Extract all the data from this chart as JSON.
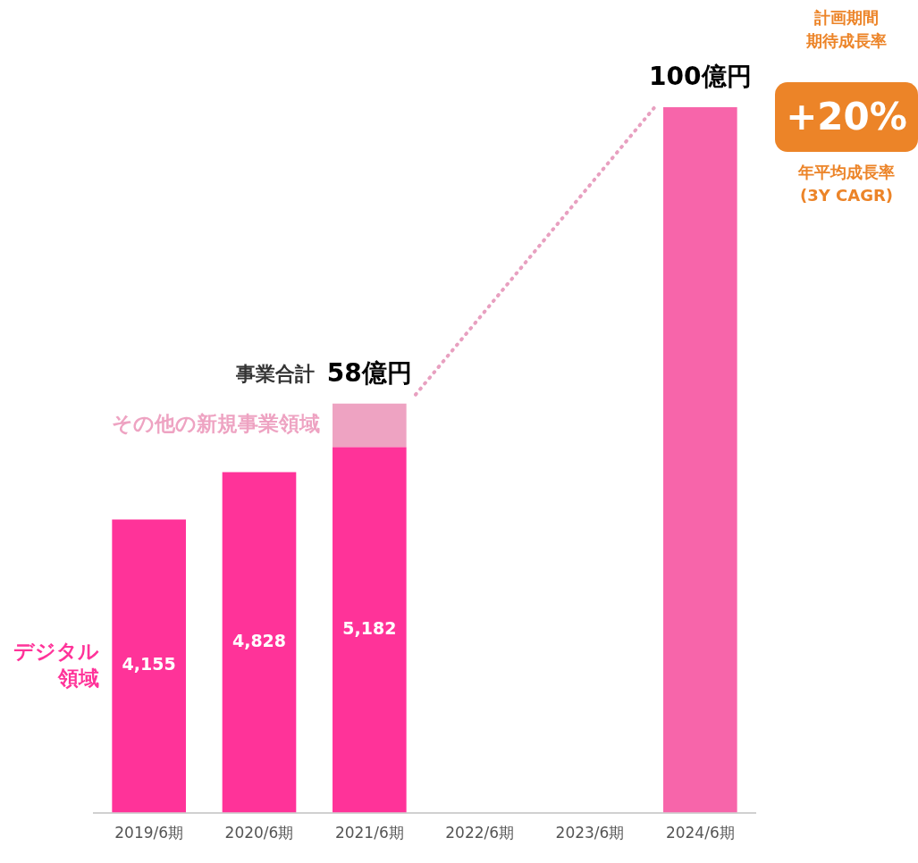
{
  "chart_data": {
    "type": "bar",
    "stacked": true,
    "categories": [
      "2019/6期",
      "2020/6期",
      "2021/6期",
      "2022/6期",
      "2023/6期",
      "2024/6期"
    ],
    "series": [
      {
        "name": "デジタル領域",
        "color": "#ff3399",
        "values": [
          4155,
          4828,
          5182,
          null,
          null,
          null
        ],
        "value_labels": [
          "4,155",
          "4,828",
          "5,182",
          null,
          null,
          null
        ]
      },
      {
        "name": "その他の新規事業領域",
        "color": "#eea3c2",
        "values": [
          null,
          null,
          618,
          null,
          null,
          null
        ]
      },
      {
        "color": "#f765aa",
        "values": [
          null,
          null,
          null,
          null,
          null,
          10000
        ]
      }
    ],
    "ylim": [
      0,
      10000
    ],
    "tick_labels": "x",
    "grid": false,
    "legend": false,
    "annotations": [
      {
        "text": "事業合計",
        "x": "2021/6期",
        "y": 5800
      },
      {
        "text": "58億円",
        "x": "2021/6期",
        "y": 5800
      },
      {
        "text": "100億円",
        "x": "2024/6期",
        "y": 10000
      },
      "計画期間",
      "期待成長率",
      "+20%",
      "年平均成長率",
      "(3Y CAGR)"
    ]
  }
}
